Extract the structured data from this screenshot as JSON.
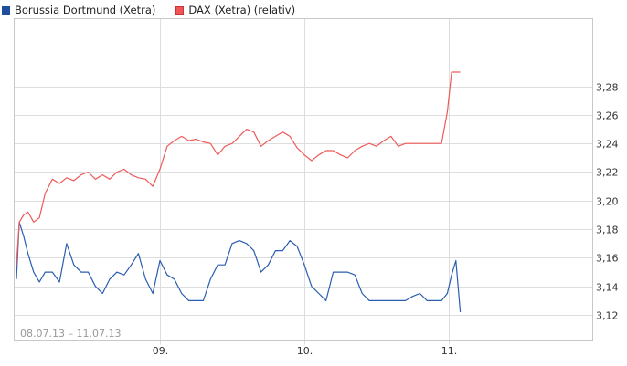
{
  "legend": [
    {
      "label": "Borussia Dortmund (Xetra)",
      "color": "#1f4e9c"
    },
    {
      "label": "DAX (Xetra) (relativ)",
      "color": "#ee5555"
    }
  ],
  "date_range": "08.07.13 – 11.07.13",
  "chart_data": {
    "type": "line",
    "title": "",
    "xlabel": "",
    "ylabel": "",
    "x_ticks": [
      "09.",
      "10.",
      "11."
    ],
    "y_ticks": [
      "3,12",
      "3,14",
      "3,16",
      "3,18",
      "3,20",
      "3,22",
      "3,24",
      "3,26",
      "3,28"
    ],
    "ylim": [
      3.105,
      3.305
    ],
    "grid": true,
    "legend_position": "top-left",
    "series": [
      {
        "name": "Borussia Dortmund (Xetra)",
        "color": "#2a5db0",
        "x": [
          0.0,
          0.02,
          0.05,
          0.08,
          0.12,
          0.16,
          0.2,
          0.25,
          0.3,
          0.35,
          0.4,
          0.45,
          0.5,
          0.55,
          0.6,
          0.65,
          0.7,
          0.75,
          0.8,
          0.85,
          0.9,
          0.95,
          1.0,
          1.05,
          1.1,
          1.15,
          1.2,
          1.25,
          1.3,
          1.35,
          1.4,
          1.45,
          1.5,
          1.55,
          1.6,
          1.65,
          1.7,
          1.75,
          1.8,
          1.85,
          1.9,
          1.95,
          2.0,
          2.05,
          2.1,
          2.15,
          2.2,
          2.25,
          2.3,
          2.35,
          2.4,
          2.45,
          2.5,
          2.55,
          2.6,
          2.65,
          2.7,
          2.75,
          2.8,
          2.85,
          2.9,
          2.95,
          2.99,
          3.02,
          3.05,
          3.08
        ],
        "values": [
          3.145,
          3.185,
          3.175,
          3.163,
          3.15,
          3.143,
          3.15,
          3.15,
          3.143,
          3.17,
          3.155,
          3.15,
          3.15,
          3.14,
          3.135,
          3.145,
          3.15,
          3.148,
          3.155,
          3.163,
          3.145,
          3.135,
          3.158,
          3.148,
          3.145,
          3.135,
          3.13,
          3.13,
          3.13,
          3.145,
          3.155,
          3.155,
          3.17,
          3.172,
          3.17,
          3.165,
          3.15,
          3.155,
          3.165,
          3.165,
          3.172,
          3.168,
          3.155,
          3.14,
          3.135,
          3.13,
          3.15,
          3.15,
          3.15,
          3.148,
          3.135,
          3.13,
          3.13,
          3.13,
          3.13,
          3.13,
          3.13,
          3.133,
          3.135,
          3.13,
          3.13,
          3.13,
          3.135,
          3.148,
          3.158,
          3.122
        ]
      },
      {
        "name": "DAX (Xetra) (relativ)",
        "color": "#ee5a5a",
        "x": [
          0.0,
          0.02,
          0.05,
          0.08,
          0.12,
          0.16,
          0.2,
          0.25,
          0.3,
          0.35,
          0.4,
          0.45,
          0.5,
          0.55,
          0.6,
          0.65,
          0.7,
          0.75,
          0.8,
          0.85,
          0.9,
          0.95,
          1.0,
          1.05,
          1.1,
          1.15,
          1.2,
          1.25,
          1.3,
          1.35,
          1.4,
          1.45,
          1.5,
          1.55,
          1.6,
          1.65,
          1.7,
          1.75,
          1.8,
          1.85,
          1.9,
          1.95,
          2.0,
          2.05,
          2.1,
          2.15,
          2.2,
          2.25,
          2.3,
          2.35,
          2.4,
          2.45,
          2.5,
          2.55,
          2.6,
          2.65,
          2.7,
          2.75,
          2.8,
          2.85,
          2.9,
          2.95,
          2.99,
          3.02,
          3.05,
          3.08
        ],
        "values": [
          3.155,
          3.185,
          3.19,
          3.192,
          3.185,
          3.188,
          3.205,
          3.215,
          3.212,
          3.216,
          3.214,
          3.218,
          3.22,
          3.215,
          3.218,
          3.215,
          3.22,
          3.222,
          3.218,
          3.216,
          3.215,
          3.21,
          3.222,
          3.238,
          3.242,
          3.245,
          3.242,
          3.243,
          3.241,
          3.24,
          3.232,
          3.238,
          3.24,
          3.245,
          3.25,
          3.248,
          3.238,
          3.242,
          3.245,
          3.248,
          3.245,
          3.237,
          3.232,
          3.228,
          3.232,
          3.235,
          3.235,
          3.232,
          3.23,
          3.235,
          3.238,
          3.24,
          3.238,
          3.242,
          3.245,
          3.238,
          3.24,
          3.24,
          3.24,
          3.24,
          3.24,
          3.24,
          3.262,
          3.29,
          3.29,
          3.29
        ]
      }
    ]
  }
}
